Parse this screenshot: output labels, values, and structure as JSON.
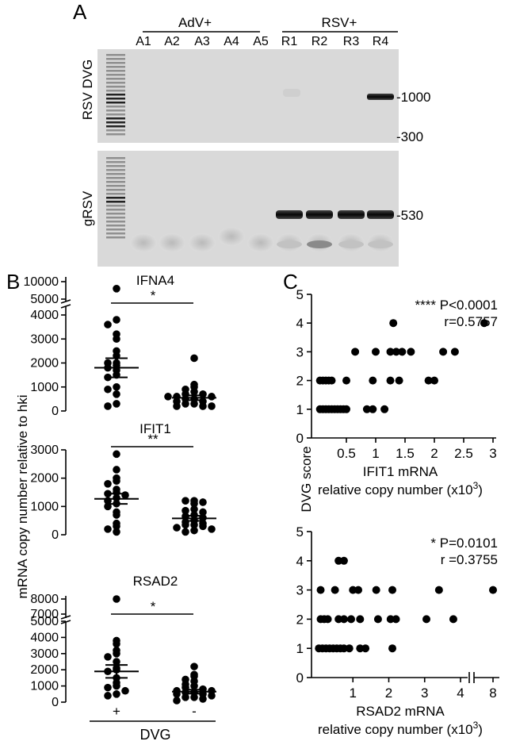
{
  "panel_a": {
    "label": "A",
    "group_labels": [
      "AdV+",
      "RSV+"
    ],
    "lanes": [
      "A1",
      "A2",
      "A3",
      "A4",
      "A5",
      "R1",
      "R2",
      "R3",
      "R4"
    ],
    "gel1_ylabel": "RSV DVG",
    "gel2_ylabel": "gRSV",
    "gel1_markers": [
      "-1000",
      "-300"
    ],
    "gel2_markers": [
      "-530"
    ]
  },
  "panel_b": {
    "label": "B",
    "ylabel": "mRNA copy number relative to hki",
    "xlabel": "DVG",
    "group_ticks": [
      "+",
      "-"
    ]
  },
  "panel_c": {
    "label": "C",
    "ylabel": "DVG score"
  },
  "chart_data": [
    {
      "type": "scatter",
      "title": "IFNA4",
      "significance": "*",
      "categories": [
        "+",
        "-"
      ],
      "ylim": [
        0,
        10000
      ],
      "yticks": [
        0,
        1000,
        2000,
        3000,
        4000,
        5000,
        10000
      ],
      "axis_break": [
        4500,
        5000
      ],
      "series": [
        {
          "values": [
            8000,
            3800,
            3600,
            3200,
            3000,
            2500,
            2300,
            2000,
            2000,
            1900,
            1800,
            1700,
            1500,
            1400,
            1000,
            900,
            700,
            300,
            200
          ],
          "mean": 1800,
          "sem": 400
        },
        {
          "values": [
            2200,
            1100,
            1000,
            900,
            800,
            700,
            700,
            600,
            600,
            600,
            500,
            500,
            400,
            400,
            300,
            300,
            200,
            200,
            200
          ],
          "mean": 550,
          "sem": 100
        }
      ]
    },
    {
      "type": "scatter",
      "title": "IFIT1",
      "significance": "**",
      "categories": [
        "+",
        "-"
      ],
      "ylim": [
        0,
        3000
      ],
      "yticks": [
        0,
        1000,
        2000,
        3000
      ],
      "series": [
        {
          "values": [
            2850,
            2300,
            2000,
            1900,
            1800,
            1600,
            1500,
            1450,
            1400,
            1300,
            1200,
            1100,
            1000,
            800,
            700,
            400,
            300,
            200,
            100
          ],
          "mean": 1270,
          "sem": 180
        },
        {
          "values": [
            1200,
            1200,
            1150,
            1100,
            900,
            850,
            800,
            700,
            650,
            600,
            500,
            450,
            400,
            350,
            350,
            300,
            250,
            200,
            150,
            100
          ],
          "mean": 580,
          "sem": 90
        }
      ]
    },
    {
      "type": "scatter",
      "title": "RSAD2",
      "significance": "*",
      "categories": [
        "+",
        "-"
      ],
      "ylim": [
        0,
        8000
      ],
      "yticks": [
        0,
        1000,
        2000,
        3000,
        4000,
        5000,
        7000,
        8000
      ],
      "axis_break": [
        5000,
        7000
      ],
      "series": [
        {
          "values": [
            8000,
            3800,
            3600,
            3200,
            3000,
            2800,
            2500,
            2100,
            2000,
            1900,
            1500,
            1200,
            1000,
            900,
            700,
            500,
            400
          ],
          "mean": 1900,
          "sem": 400
        },
        {
          "values": [
            2200,
            1700,
            1600,
            1400,
            1300,
            1100,
            1000,
            900,
            800,
            700,
            700,
            600,
            600,
            500,
            500,
            400,
            300,
            300,
            200,
            100
          ],
          "mean": 650,
          "sem": 120
        }
      ]
    },
    {
      "type": "scatter",
      "stat_p": "**** P<0.0001",
      "stat_r": "r=0.5757",
      "xlabel_1": "IFIT1 mRNA",
      "xlabel_2": "relative copy number (x10",
      "xlabel_sup": "3",
      "xlabel_end": ")",
      "xlim": [
        0,
        3
      ],
      "ylim": [
        0,
        5
      ],
      "xticks": [
        0.5,
        1,
        1.5,
        2,
        2.5,
        3
      ],
      "xtick_labels": [
        "0.5",
        "1",
        "1.5",
        "2",
        "2.5",
        "3"
      ],
      "yticks": [
        0,
        1,
        2,
        3,
        4,
        5
      ],
      "points": [
        [
          0.05,
          1
        ],
        [
          0.1,
          1
        ],
        [
          0.15,
          1
        ],
        [
          0.2,
          1
        ],
        [
          0.25,
          1
        ],
        [
          0.3,
          1
        ],
        [
          0.35,
          1
        ],
        [
          0.4,
          1
        ],
        [
          0.45,
          1
        ],
        [
          0.5,
          1
        ],
        [
          0.85,
          1
        ],
        [
          0.95,
          1
        ],
        [
          1.15,
          1
        ],
        [
          0.05,
          2
        ],
        [
          0.1,
          2
        ],
        [
          0.15,
          2
        ],
        [
          0.2,
          2
        ],
        [
          0.25,
          2
        ],
        [
          0.5,
          2
        ],
        [
          0.95,
          2
        ],
        [
          1.25,
          2
        ],
        [
          1.4,
          2
        ],
        [
          1.9,
          2
        ],
        [
          2.0,
          2
        ],
        [
          0.65,
          3
        ],
        [
          1.0,
          3
        ],
        [
          1.25,
          3
        ],
        [
          1.35,
          3
        ],
        [
          1.45,
          3
        ],
        [
          1.6,
          3
        ],
        [
          2.15,
          3
        ],
        [
          2.35,
          3
        ],
        [
          1.3,
          4
        ],
        [
          2.85,
          4
        ]
      ]
    },
    {
      "type": "scatter",
      "stat_p": "* P=0.0101",
      "stat_r": "r =0.3755",
      "xlabel_1": "RSAD2 mRNA",
      "xlabel_2": "relative copy number (x10",
      "xlabel_sup": "3",
      "xlabel_end": ")",
      "xlim": [
        0,
        8
      ],
      "axis_break": [
        4.2,
        7.5
      ],
      "ylim": [
        0,
        5
      ],
      "xticks": [
        1,
        2,
        3,
        4,
        8
      ],
      "xtick_labels": [
        "1",
        "2",
        "3",
        "4",
        "8"
      ],
      "yticks": [
        0,
        1,
        2,
        3,
        4,
        5
      ],
      "points": [
        [
          0.05,
          1
        ],
        [
          0.15,
          1
        ],
        [
          0.25,
          1
        ],
        [
          0.35,
          1
        ],
        [
          0.45,
          1
        ],
        [
          0.55,
          1
        ],
        [
          0.65,
          1
        ],
        [
          0.75,
          1
        ],
        [
          0.9,
          1
        ],
        [
          1.2,
          1
        ],
        [
          1.35,
          1
        ],
        [
          2.1,
          1
        ],
        [
          0.1,
          2
        ],
        [
          0.2,
          2
        ],
        [
          0.3,
          2
        ],
        [
          0.6,
          2
        ],
        [
          0.75,
          2
        ],
        [
          0.95,
          2
        ],
        [
          1.2,
          2
        ],
        [
          1.7,
          2
        ],
        [
          2.05,
          2
        ],
        [
          2.2,
          2
        ],
        [
          3.05,
          2
        ],
        [
          3.8,
          2
        ],
        [
          0.1,
          3
        ],
        [
          0.5,
          3
        ],
        [
          1.0,
          3
        ],
        [
          1.15,
          3
        ],
        [
          1.65,
          3
        ],
        [
          2.1,
          3
        ],
        [
          3.4,
          3
        ],
        [
          8.0,
          3
        ],
        [
          0.6,
          4
        ],
        [
          0.75,
          4
        ]
      ]
    }
  ]
}
